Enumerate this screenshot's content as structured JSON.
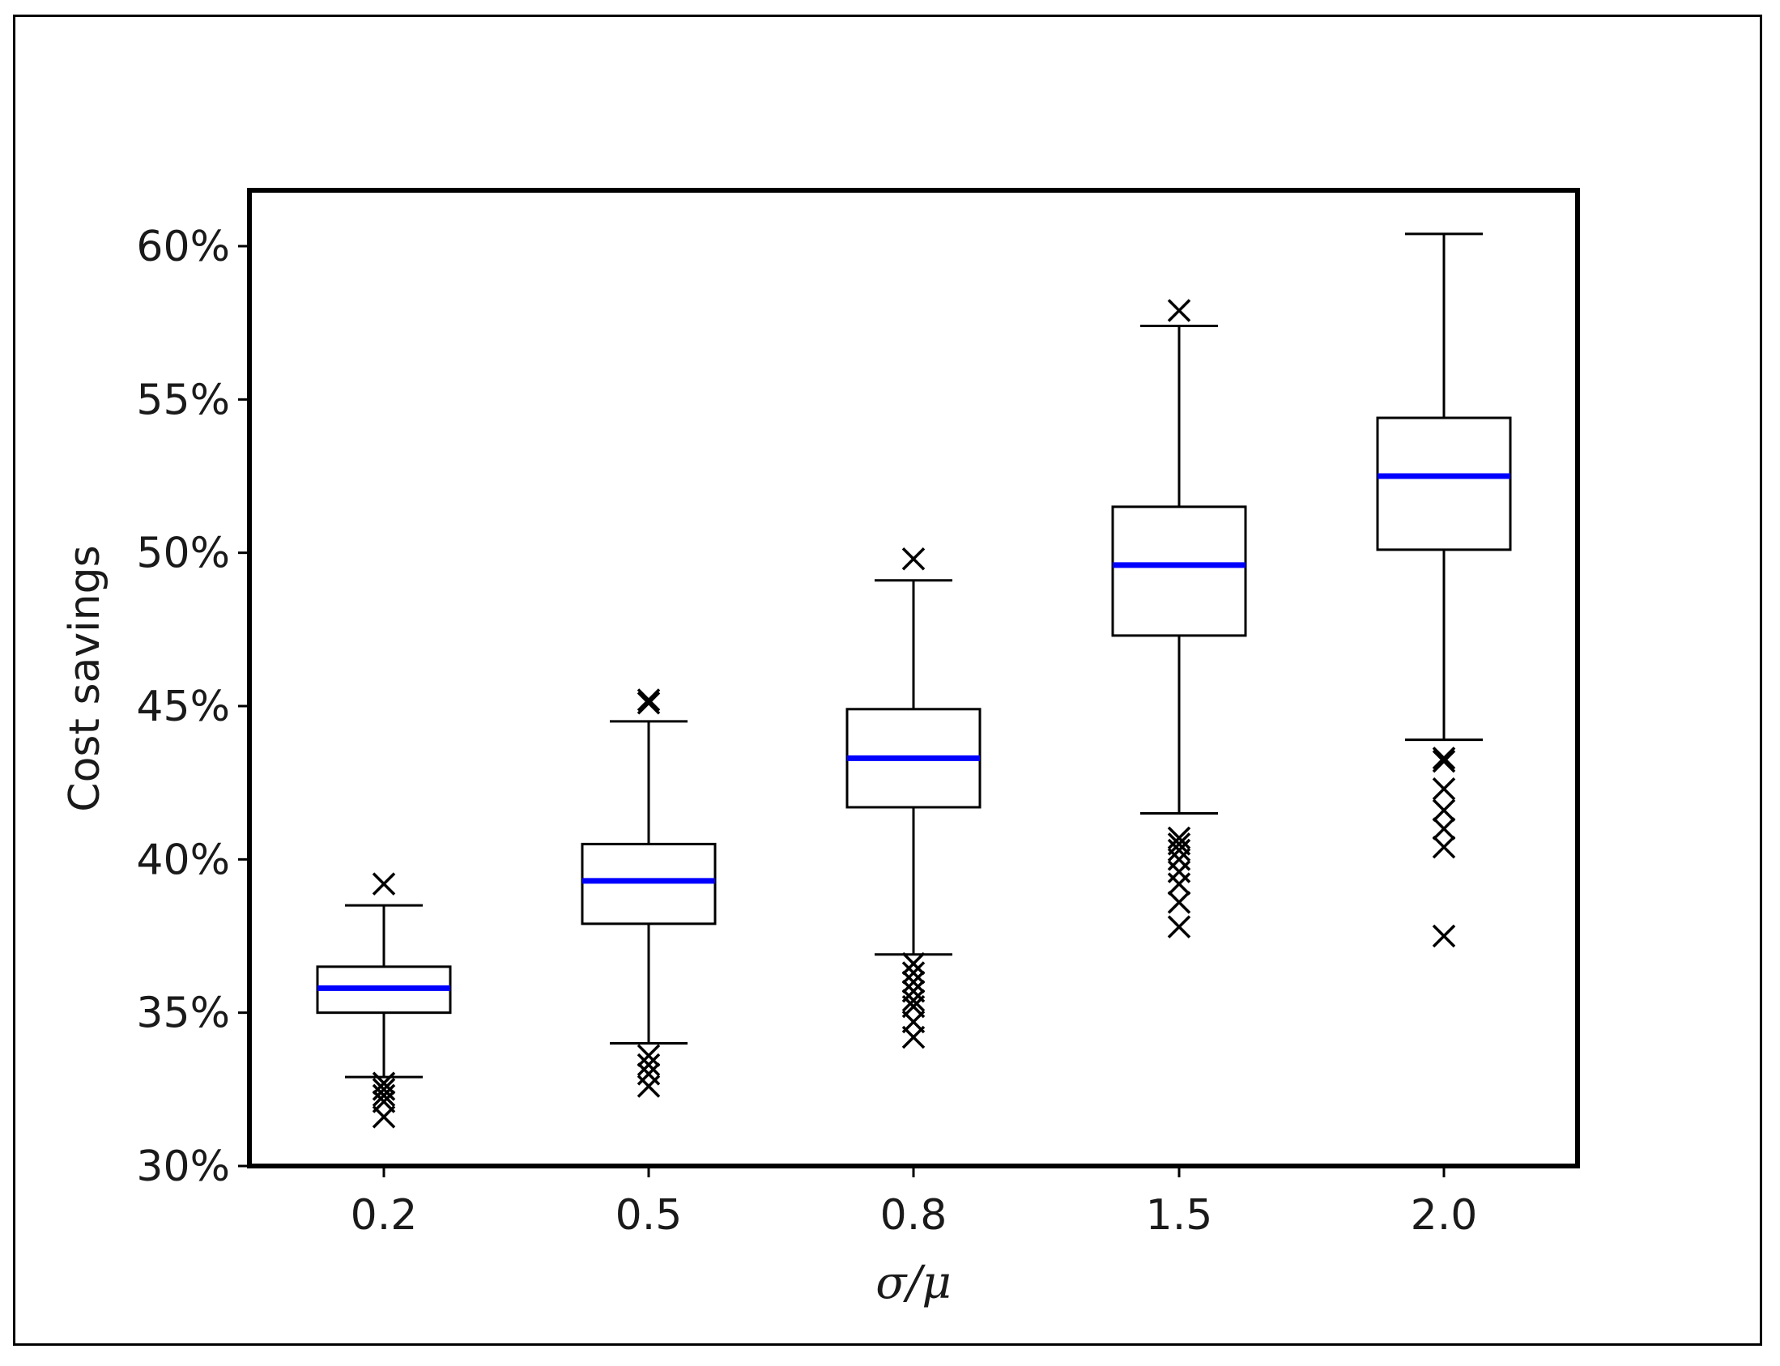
{
  "chart_data": {
    "type": "boxplot",
    "xlabel": "σ/μ",
    "ylabel": "Cost savings",
    "ylim": [
      30,
      62
    ],
    "yticks": [
      30,
      35,
      40,
      45,
      50,
      55,
      60
    ],
    "ytick_labels": [
      "30%",
      "35%",
      "40%",
      "45%",
      "50%",
      "55%",
      "60%"
    ],
    "categories": [
      "0.2",
      "0.5",
      "0.8",
      "1.5",
      "2.0"
    ],
    "grid": false,
    "box_color": "#000000",
    "median_color": "#0000ff",
    "outlier_marker": "x",
    "boxes": [
      {
        "category": "0.2",
        "whisker_low": 32.9,
        "q1": 35.0,
        "median": 35.8,
        "q3": 36.5,
        "whisker_high": 38.5,
        "outliers": [
          39.2,
          32.7,
          32.5,
          32.3,
          32.1,
          31.6
        ]
      },
      {
        "category": "0.5",
        "whisker_low": 34.0,
        "q1": 37.9,
        "median": 39.3,
        "q3": 40.5,
        "whisker_high": 44.5,
        "outliers": [
          45.2,
          45.1,
          33.6,
          33.3,
          33.0,
          32.6
        ]
      },
      {
        "category": "0.8",
        "whisker_low": 36.9,
        "q1": 41.7,
        "median": 43.3,
        "q3": 44.9,
        "whisker_high": 49.1,
        "outliers": [
          49.8,
          36.6,
          36.3,
          36.0,
          35.7,
          35.4,
          35.2,
          34.7,
          34.2
        ]
      },
      {
        "category": "1.5",
        "whisker_low": 41.5,
        "q1": 47.3,
        "median": 49.6,
        "q3": 51.5,
        "whisker_high": 57.4,
        "outliers": [
          57.9,
          40.7,
          40.5,
          40.3,
          40.0,
          39.6,
          39.2,
          38.6,
          37.8
        ]
      },
      {
        "category": "2.0",
        "whisker_low": 43.9,
        "q1": 50.1,
        "median": 52.5,
        "q3": 54.4,
        "whisker_high": 60.4,
        "outliers": [
          43.3,
          43.2,
          42.3,
          41.6,
          41.0,
          40.4,
          37.5
        ]
      }
    ]
  }
}
